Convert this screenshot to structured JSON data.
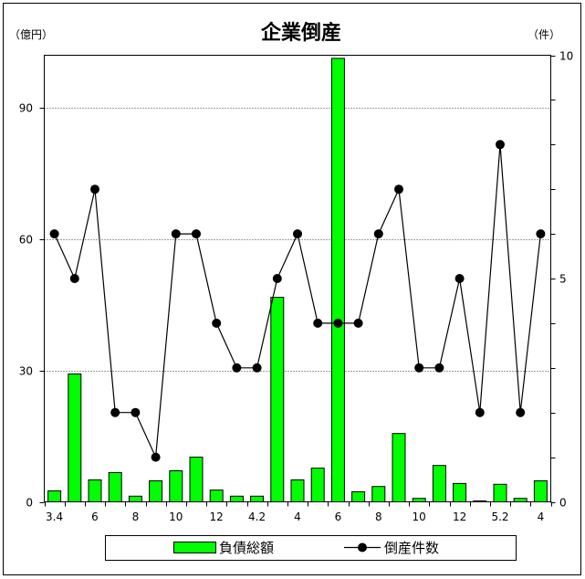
{
  "chart_data": {
    "type": "bar",
    "title": "企業倒産",
    "x_labels": [
      "3.4",
      "",
      "6",
      "",
      "8",
      "",
      "10",
      "",
      "12",
      "",
      "4.2",
      "",
      "4",
      "",
      "6",
      "",
      "8",
      "",
      "10",
      "",
      "12",
      "",
      "5.2",
      "",
      "4"
    ],
    "y_left": {
      "unit": "（億円）",
      "range": [
        0,
        102
      ],
      "ticks": [
        0,
        30,
        60,
        90
      ]
    },
    "y_right": {
      "unit": "（件）",
      "range": [
        0,
        10
      ],
      "ticks": [
        0,
        5,
        10
      ]
    },
    "grid": true,
    "legend": "bottom",
    "series": [
      {
        "name": "負債総額",
        "type": "bar",
        "y_axis": "left",
        "color": "#00ff00",
        "values": [
          2.5,
          29.2,
          5.0,
          6.7,
          1.3,
          4.8,
          7.1,
          10.2,
          2.7,
          1.3,
          1.3,
          46.7,
          5.0,
          7.7,
          101.3,
          2.3,
          3.5,
          15.6,
          0.8,
          8.3,
          4.2,
          0.2,
          4.0,
          0.8,
          4.8
        ]
      },
      {
        "name": "倒産件数",
        "type": "line",
        "y_axis": "right",
        "color": "#000000",
        "values": [
          6,
          5,
          7,
          2,
          2,
          1,
          6,
          6,
          4,
          3,
          3,
          5,
          6,
          4,
          4,
          4,
          6,
          7,
          3,
          3,
          5,
          2,
          8,
          2,
          6
        ]
      }
    ]
  }
}
